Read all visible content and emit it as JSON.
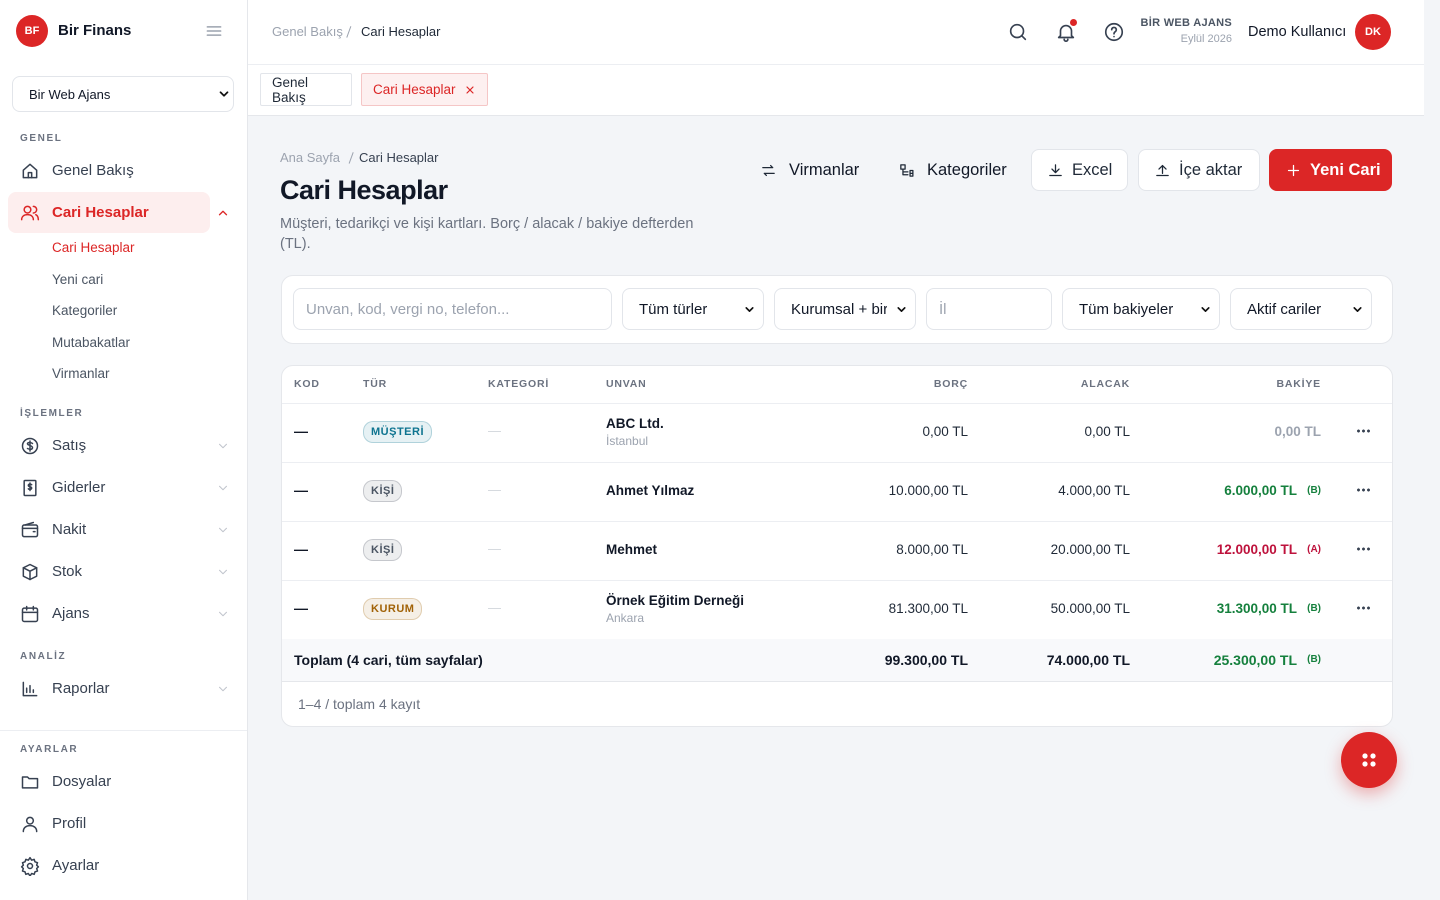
{
  "sidebar": {
    "logo": "BF",
    "brand": "Bir Finans",
    "company_select": "Bir Web Ajans",
    "sections": [
      {
        "title": "GENEL",
        "items": [
          {
            "label": "Genel Bakış"
          },
          {
            "label": "Cari Hesaplar",
            "active": true,
            "children": [
              "Cari Hesaplar",
              "Yeni cari",
              "Kategoriler",
              "Mutabakatlar",
              "Virmanlar"
            ]
          }
        ]
      },
      {
        "title": "İŞLEMLER",
        "items": [
          {
            "label": "Satış",
            "has_submenu": true
          },
          {
            "label": "Giderler",
            "has_submenu": true
          },
          {
            "label": "Nakit",
            "has_submenu": true
          },
          {
            "label": "Stok",
            "has_submenu": true
          },
          {
            "label": "Ajans",
            "has_submenu": true
          }
        ]
      },
      {
        "title": "ANALİZ",
        "items": [
          {
            "label": "Raporlar",
            "has_submenu": true
          }
        ]
      },
      {
        "title": "AYARLAR",
        "items": [
          {
            "label": "Dosyalar"
          },
          {
            "label": "Profil"
          },
          {
            "label": "Ayarlar"
          }
        ]
      }
    ]
  },
  "topbar": {
    "breadcrumb": [
      "Genel Bakış",
      "Cari Hesaplar"
    ],
    "company": "BİR WEB AJANS",
    "period": "Eylül 2026",
    "user": "Demo Kullanıcı",
    "avatar": "DK"
  },
  "tabs": [
    "Genel Bakış",
    "Cari Hesaplar"
  ],
  "page": {
    "breadcrumb": [
      "Ana Sayfa",
      "Cari Hesaplar"
    ],
    "title": "Cari Hesaplar",
    "description": "Müşteri, tedarikçi ve kişi kartları. Borç / alacak / bakiye defterden (TL).",
    "actions": [
      "Virmanlar",
      "Kategoriler",
      "Excel",
      "İçe aktar",
      "Yeni Cari"
    ]
  },
  "filters": {
    "search_placeholder": "Unvan, kod, vergi no, telefon...",
    "type_select": "Tüm türler",
    "scope_select": "Kurumsal + bir",
    "city_placeholder": "İl",
    "balance_select": "Tüm bakiyeler",
    "status_select": "Aktif cariler"
  },
  "table": {
    "columns": [
      "KOD",
      "TÜR",
      "KATEGORİ",
      "UNVAN",
      "BORÇ",
      "ALACAK",
      "BAKİYE"
    ],
    "rows": [
      {
        "code": "—",
        "type": "MÜŞTERİ",
        "type_color": "#0e7490",
        "category": "—",
        "name": "ABC Ltd.",
        "city": "İstanbul",
        "debit": "0,00 TL",
        "credit": "0,00 TL",
        "balance": "0,00 TL",
        "balance_color": "#9ca3af"
      },
      {
        "code": "—",
        "type": "KİŞİ",
        "type_color": "#4b5563",
        "category": "—",
        "name": "Ahmet Yılmaz",
        "debit": "10.000,00 TL",
        "credit": "4.000,00 TL",
        "balance": "6.000,00 TL",
        "balance_side": "(B)",
        "balance_color": "#15803d"
      },
      {
        "code": "—",
        "type": "KİŞİ",
        "type_color": "#4b5563",
        "category": "—",
        "name": "Mehmet",
        "debit": "8.000,00 TL",
        "credit": "20.000,00 TL",
        "balance": "12.000,00 TL",
        "balance_side": "(A)",
        "balance_color": "#be123c"
      },
      {
        "code": "—",
        "type": "KURUM",
        "type_color": "#a16207",
        "category": "—",
        "name": "Örnek Eğitim Derneği",
        "city": "Ankara",
        "debit": "81.300,00 TL",
        "credit": "50.000,00 TL",
        "balance": "31.300,00 TL",
        "balance_side": "(B)",
        "balance_color": "#15803d"
      }
    ],
    "total": {
      "label": "Toplam (4 cari, tüm sayfalar)",
      "debit": "99.300,00 TL",
      "credit": "74.000,00 TL",
      "balance": "25.300,00 TL",
      "balance_side": "(B)",
      "balance_color": "#15803d"
    },
    "pagination": "1–4 / toplam 4 kayıt"
  }
}
